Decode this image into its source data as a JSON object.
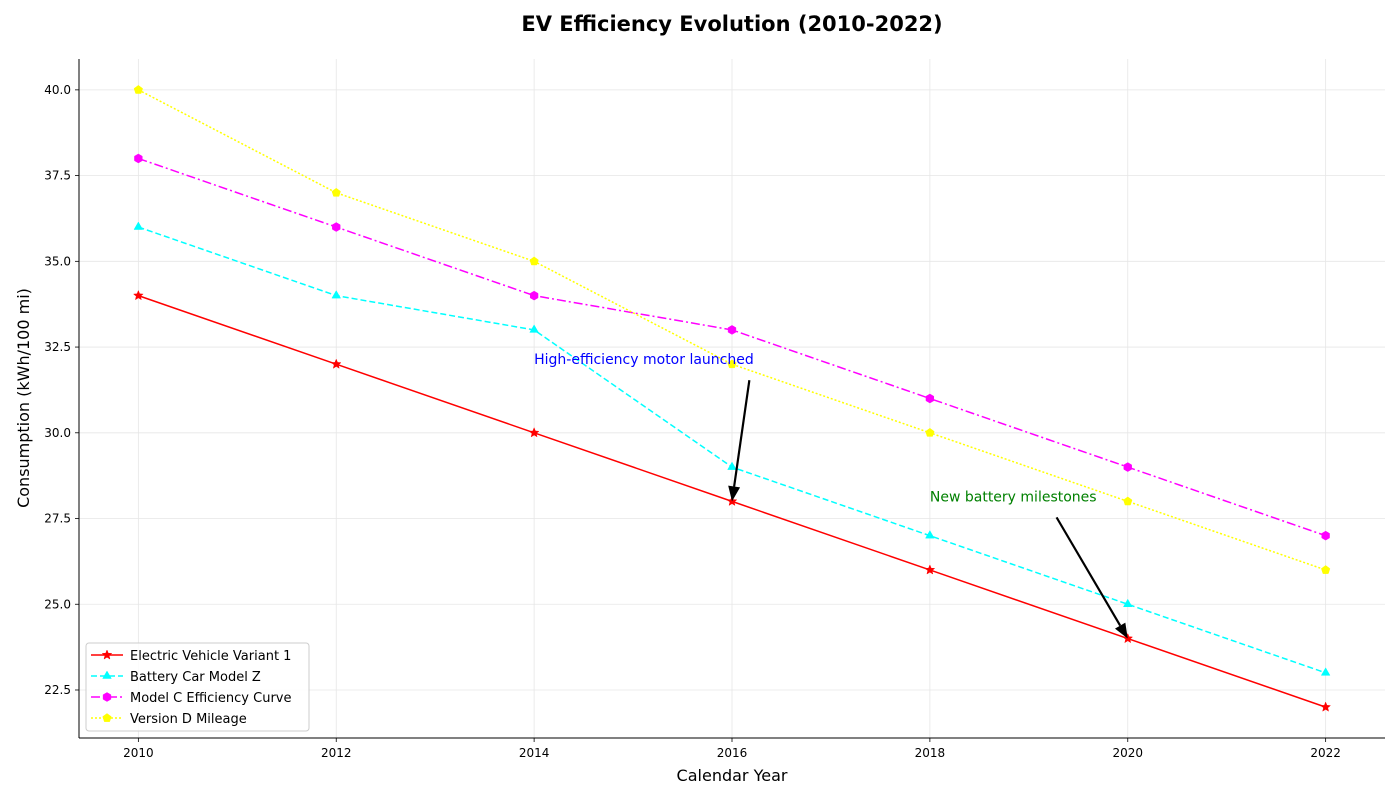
{
  "chart_data": {
    "type": "line",
    "title": "EV Efficiency Evolution (2010-2022)",
    "xlabel": "Calendar Year",
    "ylabel": "Consumption (kWh/100 mi)",
    "x": [
      2010,
      2012,
      2014,
      2016,
      2018,
      2020,
      2022
    ],
    "xticks": [
      "2010",
      "2012",
      "2014",
      "2016",
      "2018",
      "2020",
      "2022"
    ],
    "yticks": [
      "22.5",
      "25.0",
      "27.5",
      "30.0",
      "32.5",
      "35.0",
      "37.5",
      "40.0"
    ],
    "xlim": [
      2009.4,
      2022.6
    ],
    "ylim": [
      21.1,
      40.9
    ],
    "grid": true,
    "legend_position": "lower-left",
    "series": [
      {
        "name": "Electric Vehicle Variant 1",
        "values": [
          34,
          32,
          30,
          28,
          26,
          24,
          22
        ],
        "color": "#ff0000",
        "line_style": "solid",
        "marker": "star"
      },
      {
        "name": "Battery Car Model Z",
        "values": [
          36,
          34,
          33,
          29,
          27,
          25,
          23
        ],
        "color": "#00ffff",
        "line_style": "dashed",
        "marker": "triangle"
      },
      {
        "name": "Model C Efficiency Curve",
        "values": [
          38,
          36,
          34,
          33,
          31,
          29,
          27
        ],
        "color": "#ff00ff",
        "line_style": "dashdot",
        "marker": "hexagon"
      },
      {
        "name": "Version D Mileage",
        "values": [
          40,
          37,
          35,
          32,
          30,
          28,
          26
        ],
        "color": "#ffff00",
        "line_style": "dotted",
        "marker": "pentagon"
      }
    ],
    "annotations": [
      {
        "text": "High-efficiency motor launched",
        "color": "#0000ff",
        "text_x": 2014,
        "text_y": 32,
        "target_x": 2016,
        "target_y": 28
      },
      {
        "text": "New battery milestones",
        "color": "#008000",
        "text_x": 2018,
        "text_y": 28,
        "target_x": 2020,
        "target_y": 24
      }
    ]
  }
}
